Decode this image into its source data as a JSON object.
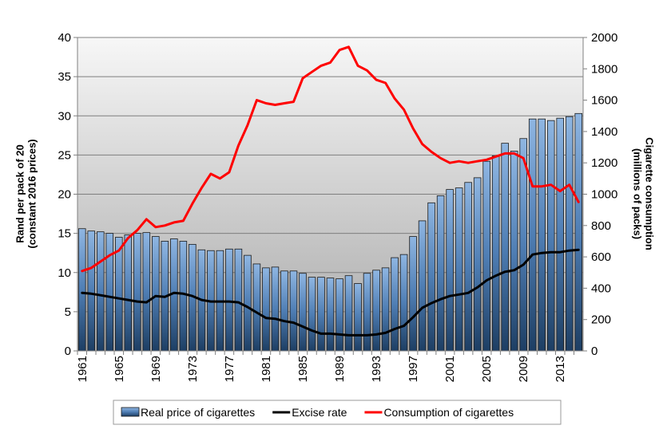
{
  "chart_data": {
    "type": "bar",
    "title": "",
    "x": [
      1961,
      1962,
      1963,
      1964,
      1965,
      1966,
      1967,
      1968,
      1969,
      1970,
      1971,
      1972,
      1973,
      1974,
      1975,
      1976,
      1977,
      1978,
      1979,
      1980,
      1981,
      1982,
      1983,
      1984,
      1985,
      1986,
      1987,
      1988,
      1989,
      1990,
      1991,
      1992,
      1993,
      1994,
      1995,
      1996,
      1997,
      1998,
      1999,
      2000,
      2001,
      2002,
      2003,
      2004,
      2005,
      2006,
      2007,
      2008,
      2009,
      2010,
      2011,
      2012,
      2013,
      2014,
      2015
    ],
    "x_tick_labels": [
      "1961",
      "1965",
      "1969",
      "1973",
      "1977",
      "1981",
      "1985",
      "1989",
      "1993",
      "1997",
      "2001",
      "2005",
      "2009",
      "2013"
    ],
    "ylabel_left": [
      "Rand per pack of 20",
      "(constant 2016 prices)"
    ],
    "ylabel_right": [
      "Cigarette consumption",
      "(millions of packs)"
    ],
    "ylim_left": [
      0,
      40
    ],
    "ylim_right": [
      0,
      2000
    ],
    "left_ticks": [
      "0",
      "5",
      "10",
      "15",
      "20",
      "25",
      "30",
      "35",
      "40"
    ],
    "right_ticks": [
      "0",
      "200",
      "400",
      "600",
      "800",
      "1000",
      "1200",
      "1400",
      "1600",
      "1800",
      "2000"
    ],
    "grid": true,
    "legend_position": "bottom",
    "series": [
      {
        "name": "Real price of cigarettes",
        "kind": "bar",
        "axis": "left",
        "color": "#6f9ac9",
        "values": [
          15.6,
          15.3,
          15.2,
          15.0,
          14.5,
          14.8,
          15.0,
          15.1,
          14.6,
          14.0,
          14.3,
          14.0,
          13.6,
          12.9,
          12.8,
          12.8,
          13.0,
          13.0,
          12.2,
          11.1,
          10.6,
          10.7,
          10.2,
          10.2,
          9.9,
          9.4,
          9.4,
          9.3,
          9.2,
          9.6,
          8.6,
          9.9,
          10.3,
          10.6,
          11.9,
          12.3,
          14.6,
          16.6,
          18.9,
          19.8,
          20.6,
          20.8,
          21.5,
          22.1,
          24.2,
          24.9,
          26.5,
          25.5,
          27.1,
          29.6,
          29.6,
          29.4,
          29.7,
          29.9,
          30.3
        ]
      },
      {
        "name": "Excise rate",
        "kind": "line",
        "axis": "left",
        "color": "#000000",
        "values": [
          7.4,
          7.3,
          7.1,
          6.9,
          6.7,
          6.5,
          6.3,
          6.2,
          7.0,
          6.9,
          7.4,
          7.3,
          7.0,
          6.5,
          6.3,
          6.3,
          6.3,
          6.2,
          5.6,
          4.9,
          4.2,
          4.1,
          3.8,
          3.6,
          3.1,
          2.6,
          2.2,
          2.2,
          2.1,
          2.0,
          2.0,
          2.0,
          2.1,
          2.3,
          2.8,
          3.2,
          4.3,
          5.5,
          6.1,
          6.6,
          7.0,
          7.2,
          7.4,
          8.1,
          9.0,
          9.6,
          10.1,
          10.3,
          11.0,
          12.3,
          12.5,
          12.6,
          12.6,
          12.8,
          12.9
        ]
      },
      {
        "name": "Consumption of cigarettes",
        "kind": "line",
        "axis": "right",
        "color": "#ff0000",
        "values": [
          510,
          530,
          570,
          610,
          640,
          720,
          770,
          840,
          790,
          800,
          820,
          830,
          940,
          1040,
          1130,
          1100,
          1140,
          1310,
          1440,
          1600,
          1580,
          1570,
          1580,
          1590,
          1740,
          1780,
          1820,
          1840,
          1920,
          1940,
          1820,
          1790,
          1730,
          1710,
          1610,
          1540,
          1420,
          1320,
          1270,
          1230,
          1200,
          1210,
          1200,
          1210,
          1220,
          1240,
          1260,
          1260,
          1230,
          1050,
          1050,
          1060,
          1020,
          1060,
          950
        ]
      }
    ]
  }
}
